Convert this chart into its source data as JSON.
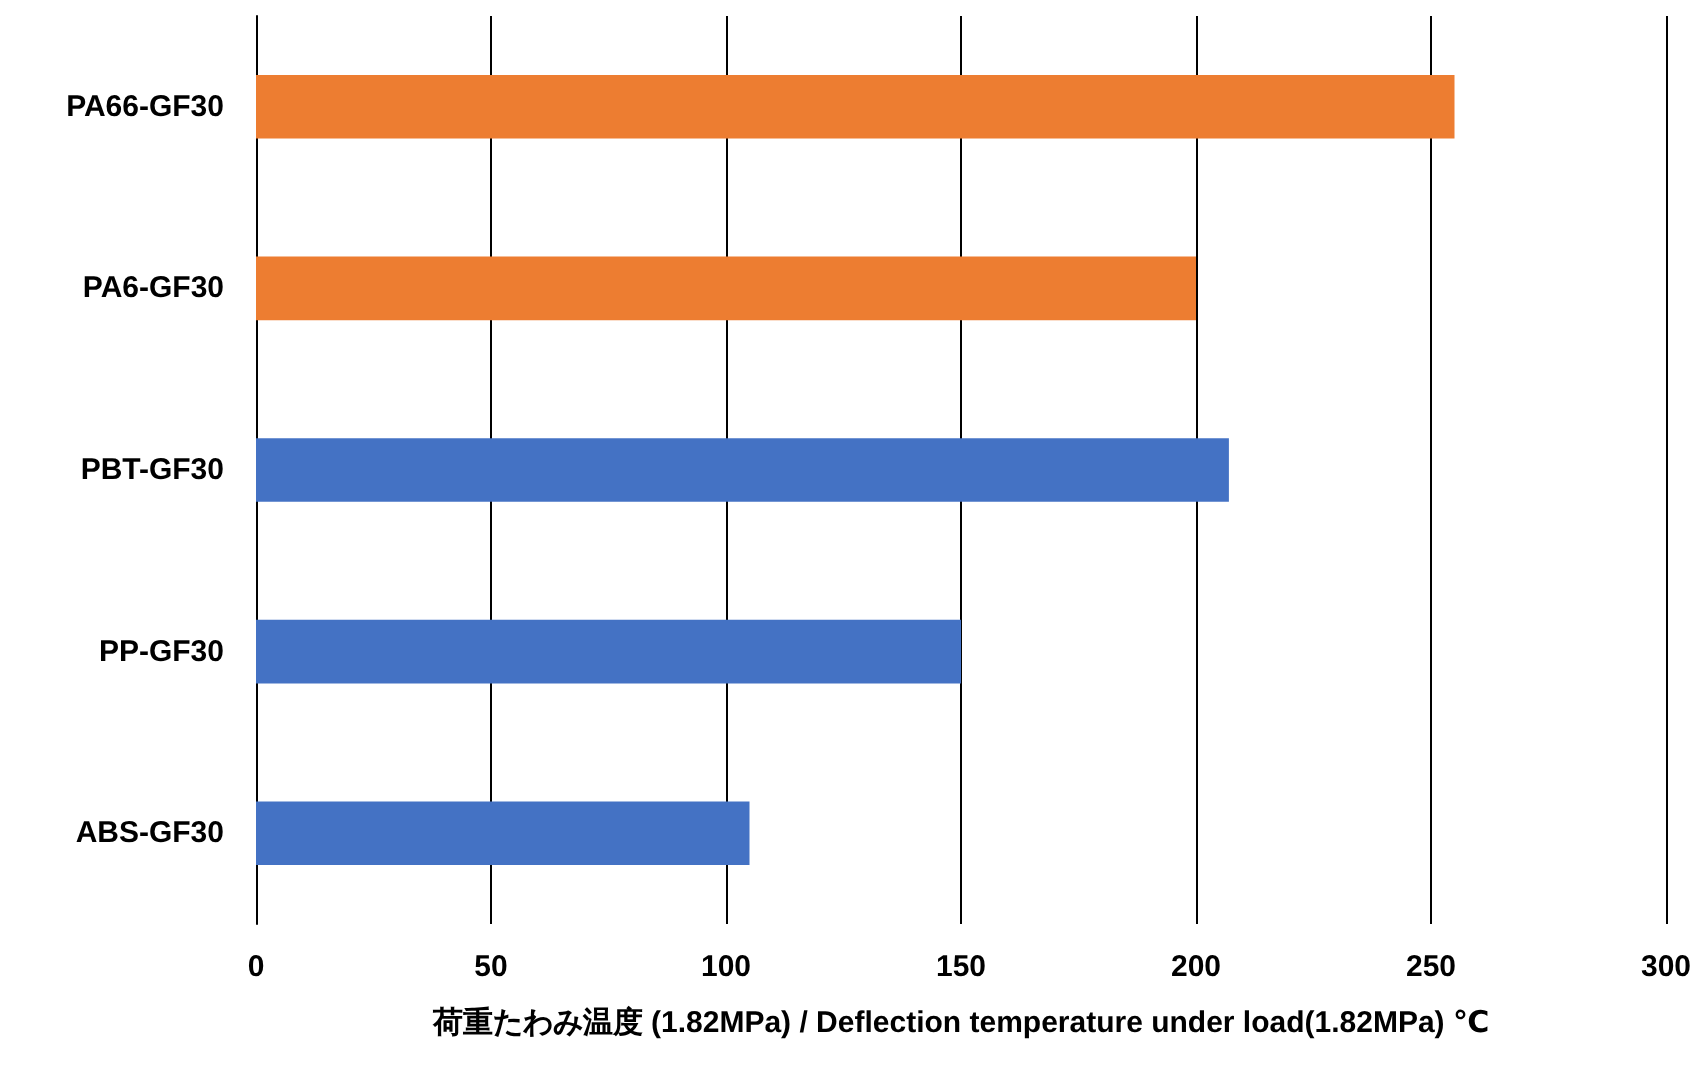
{
  "chart_data": {
    "type": "bar",
    "orientation": "horizontal",
    "xlabel": "荷重たわみ温度 (1.82MPa) / Deflection temperature under load(1.82MPa) ℃",
    "categories": [
      "PA66-GF30",
      "PA6-GF30",
      "PBT-GF30",
      "PP-GF30",
      "ABS-GF30"
    ],
    "values": [
      255,
      200,
      207,
      150,
      105
    ],
    "colors": [
      "#ed7d31",
      "#ed7d31",
      "#4472c4",
      "#4472c4",
      "#4472c4"
    ],
    "xlim": [
      0,
      300
    ],
    "xticks": [
      0,
      50,
      100,
      150,
      200,
      250,
      300
    ],
    "grid": "x"
  }
}
